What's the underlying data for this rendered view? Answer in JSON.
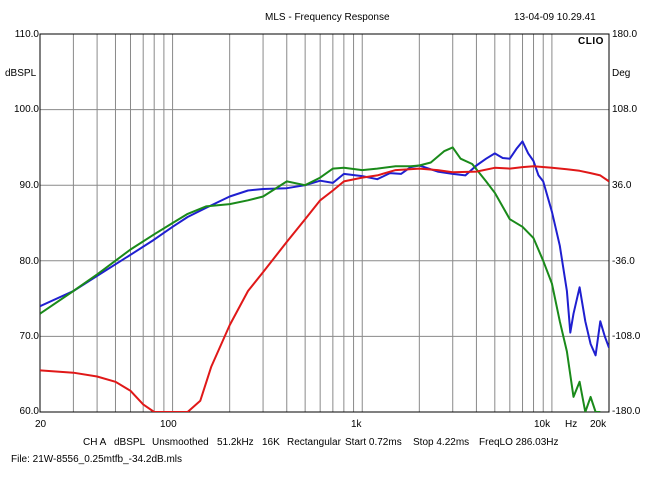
{
  "header": {
    "title": "MLS - Frequency Response",
    "timestamp": "13-04-09 10.29.41",
    "brand": "CLIO"
  },
  "axes": {
    "left_unit": "dBSPL",
    "right_unit": "Deg",
    "left_ticks": [
      "110.0",
      "100.0",
      "90.0",
      "80.0",
      "70.0",
      "60.0"
    ],
    "right_ticks": [
      "180.0",
      "108.0",
      "36.0",
      "-36.0",
      "-108.0",
      "-180.0"
    ],
    "x_ticks": [
      "20",
      "100",
      "1k",
      "10k",
      "Hz",
      "20k"
    ]
  },
  "status": {
    "items": [
      "CH A",
      "dBSPL",
      "Unsmoothed",
      "51.2kHz",
      "16K",
      "Rectangular",
      "Start 0.72ms",
      "Stop 4.22ms",
      "FreqLO 286.03Hz"
    ],
    "file": "File: 21W-8556_0.25mtfb_-34.2dB.mls"
  },
  "chart_data": {
    "type": "line",
    "title": "MLS - Frequency Response",
    "xlabel": "Hz",
    "ylabel": "dBSPL",
    "y2label": "Deg",
    "xscale": "log",
    "xlim": [
      20,
      20000
    ],
    "ylim": [
      60,
      110
    ],
    "y2lim": [
      -180,
      180
    ],
    "grid": true,
    "colors": {
      "blue": "#1f1fd0",
      "green": "#1a8a1a",
      "red": "#e01818"
    },
    "series": [
      {
        "color": "blue",
        "x": [
          20,
          30,
          40,
          60,
          80,
          100,
          120,
          150,
          200,
          250,
          300,
          400,
          500,
          600,
          700,
          800,
          1000,
          1200,
          1400,
          1600,
          1800,
          2000,
          2500,
          3000,
          3500,
          4000,
          4500,
          5000,
          5500,
          6000,
          6500,
          7000,
          7500,
          8000,
          8500,
          9000,
          10000,
          11000,
          12000,
          12500,
          13000,
          14000,
          15000,
          16000,
          17000,
          18000,
          19000,
          20000
        ],
        "y": [
          74,
          76,
          78,
          80.8,
          82.8,
          84.5,
          85.8,
          87,
          88.5,
          89.3,
          89.5,
          89.6,
          90,
          90.6,
          90.3,
          91.5,
          91.2,
          90.8,
          91.6,
          91.5,
          92.4,
          92.6,
          91.8,
          91.5,
          91.3,
          92.6,
          93.5,
          94.2,
          93.6,
          93.5,
          94.8,
          95.8,
          94.2,
          93.2,
          91.3,
          90.5,
          86.5,
          82,
          76,
          70.5,
          73,
          76.5,
          72,
          69,
          67.5,
          72,
          70,
          68.5
        ]
      },
      {
        "color": "green",
        "x": [
          20,
          30,
          40,
          60,
          80,
          100,
          120,
          150,
          200,
          250,
          300,
          400,
          500,
          600,
          700,
          800,
          1000,
          1200,
          1500,
          1800,
          2000,
          2300,
          2700,
          3000,
          3300,
          3800,
          4500,
          5000,
          6000,
          7000,
          8000,
          9000,
          10000,
          11000,
          12000,
          13000,
          14000,
          15000,
          16000,
          17000,
          18000
        ],
        "y": [
          73,
          76,
          78.2,
          81.5,
          83.5,
          85,
          86.2,
          87.2,
          87.5,
          88,
          88.5,
          90.5,
          90,
          91,
          92.2,
          92.3,
          92,
          92.2,
          92.5,
          92.5,
          92.6,
          93,
          94.5,
          95,
          93.5,
          92.8,
          90.5,
          89,
          85.5,
          84.5,
          83,
          80,
          77,
          72,
          68,
          62,
          64,
          60,
          62,
          60,
          60
        ]
      },
      {
        "color": "red",
        "x": [
          20,
          30,
          40,
          50,
          60,
          70,
          80,
          120,
          140,
          160,
          200,
          250,
          300,
          400,
          500,
          600,
          700,
          800,
          1000,
          1200,
          1500,
          2000,
          2500,
          3000,
          4000,
          5000,
          6000,
          7000,
          8000,
          10000,
          12000,
          14000,
          16000,
          18000,
          20000
        ],
        "y": [
          65.5,
          65.2,
          64.7,
          64,
          62.8,
          61,
          60,
          60,
          61.5,
          66,
          71.5,
          76,
          78.5,
          82.5,
          85.5,
          88,
          89.3,
          90.5,
          91,
          91.3,
          92,
          92.2,
          92,
          91.7,
          91.8,
          92.3,
          92.2,
          92.4,
          92.5,
          92.3,
          92.1,
          91.9,
          91.6,
          91.3,
          90.5
        ]
      }
    ]
  }
}
